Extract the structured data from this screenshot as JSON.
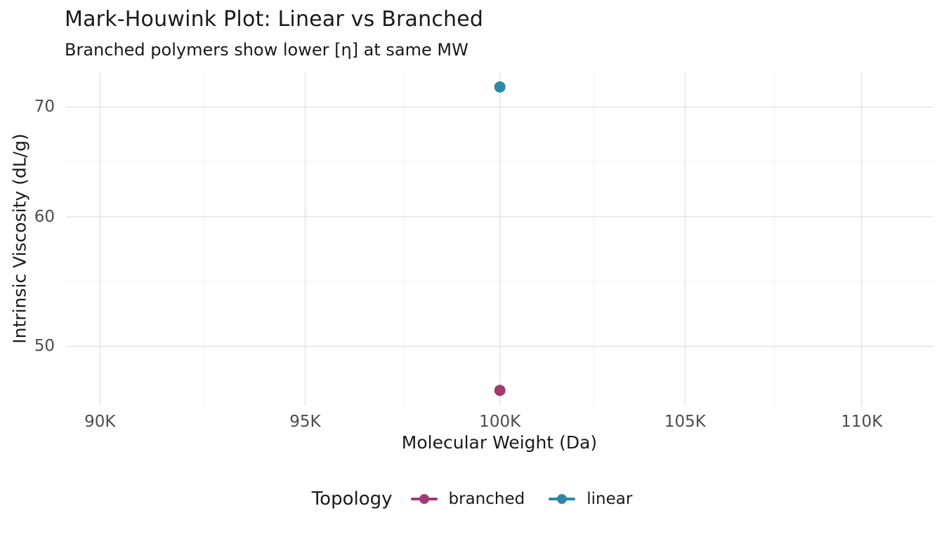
{
  "title": "Mark-Houwink Plot: Linear vs Branched",
  "subtitle": "Branched polymers show lower [η] at same MW",
  "chart_data": {
    "type": "scatter",
    "title": "Mark-Houwink Plot: Linear vs Branched",
    "subtitle": "Branched polymers show lower [η] at same MW",
    "xlabel": "Molecular Weight (Da)",
    "ylabel": "Intrinsic Viscosity (dL/g)",
    "x_scale": "log10",
    "y_scale": "log10",
    "x_domain": [
      89200,
      112100
    ],
    "y_domain": [
      46.0,
      73.5
    ],
    "x_ticks": [
      {
        "value": 90000,
        "label": "90K"
      },
      {
        "value": 95000,
        "label": "95K"
      },
      {
        "value": 100000,
        "label": "100K"
      },
      {
        "value": 105000,
        "label": "105K"
      },
      {
        "value": 110000,
        "label": "110K"
      }
    ],
    "x_minor": [
      92500,
      97500,
      102500,
      107500
    ],
    "y_ticks": [
      {
        "value": 70,
        "label": "70"
      },
      {
        "value": 60,
        "label": "60"
      },
      {
        "value": 50,
        "label": "50"
      }
    ],
    "y_minor": [
      64.8,
      54.8
    ],
    "series": [
      {
        "name": "branched",
        "color": "#A23B72",
        "points": [
          {
            "x": 100000,
            "y": 47
          }
        ]
      },
      {
        "name": "linear",
        "color": "#2E86AB",
        "points": [
          {
            "x": 100000,
            "y": 72
          }
        ]
      }
    ],
    "legend": {
      "title": "Topology",
      "position": "bottom"
    },
    "grid": {
      "major_color": "#E7E7E7",
      "minor_color": "#F2F2F2"
    },
    "background": "#FFFFFF",
    "point_radius": 8
  }
}
